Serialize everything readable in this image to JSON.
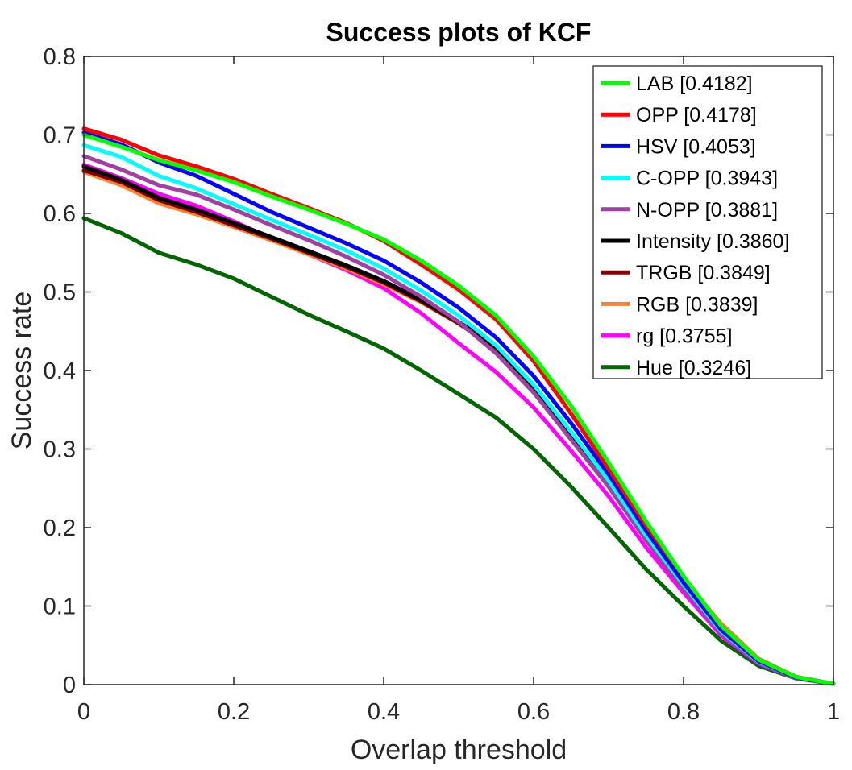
{
  "chart_data": {
    "type": "line",
    "title": "Success plots of KCF",
    "xlabel": "Overlap threshold",
    "ylabel": "Success rate",
    "xlim": [
      0,
      1
    ],
    "ylim": [
      0,
      0.8
    ],
    "grid": false,
    "legend_position": "top-right",
    "x_ticks": [
      "0",
      "0.2",
      "0.4",
      "0.6",
      "0.8",
      "1"
    ],
    "y_ticks": [
      "0",
      "0.1",
      "0.2",
      "0.3",
      "0.4",
      "0.5",
      "0.6",
      "0.7",
      "0.8"
    ],
    "x": [
      0,
      0.05,
      0.1,
      0.15,
      0.2,
      0.25,
      0.3,
      0.35,
      0.4,
      0.45,
      0.5,
      0.55,
      0.6,
      0.65,
      0.7,
      0.75,
      0.8,
      0.85,
      0.9,
      0.95,
      1.0
    ],
    "series": [
      {
        "name": "LAB [0.4182]",
        "color": "#00ff00",
        "values": [
          0.7,
          0.685,
          0.668,
          0.655,
          0.64,
          0.622,
          0.605,
          0.587,
          0.567,
          0.54,
          0.508,
          0.47,
          0.418,
          0.355,
          0.283,
          0.208,
          0.138,
          0.075,
          0.032,
          0.01,
          0.001
        ]
      },
      {
        "name": "OPP [0.4178]",
        "color": "#ff0000",
        "values": [
          0.708,
          0.694,
          0.674,
          0.66,
          0.644,
          0.625,
          0.607,
          0.588,
          0.565,
          0.535,
          0.503,
          0.465,
          0.412,
          0.345,
          0.275,
          0.203,
          0.138,
          0.075,
          0.032,
          0.01,
          0.001
        ]
      },
      {
        "name": "HSV [0.4053]",
        "color": "#0000ff",
        "values": [
          0.703,
          0.688,
          0.665,
          0.648,
          0.625,
          0.602,
          0.582,
          0.562,
          0.54,
          0.512,
          0.48,
          0.442,
          0.393,
          0.333,
          0.268,
          0.196,
          0.13,
          0.07,
          0.03,
          0.009,
          0.001
        ]
      },
      {
        "name": "C-OPP [0.3943]",
        "color": "#00ffff",
        "values": [
          0.687,
          0.672,
          0.648,
          0.632,
          0.612,
          0.592,
          0.573,
          0.553,
          0.53,
          0.502,
          0.47,
          0.432,
          0.382,
          0.322,
          0.26,
          0.19,
          0.127,
          0.068,
          0.029,
          0.009,
          0.001
        ]
      },
      {
        "name": "N-OPP [0.3881]",
        "color": "#a040a0",
        "values": [
          0.673,
          0.656,
          0.636,
          0.624,
          0.605,
          0.585,
          0.566,
          0.545,
          0.522,
          0.494,
          0.462,
          0.422,
          0.372,
          0.312,
          0.252,
          0.184,
          0.122,
          0.066,
          0.028,
          0.008,
          0.001
        ]
      },
      {
        "name": "Intensity [0.3860]",
        "color": "#000000",
        "values": [
          0.66,
          0.643,
          0.62,
          0.605,
          0.588,
          0.57,
          0.552,
          0.534,
          0.514,
          0.49,
          0.462,
          0.43,
          0.38,
          0.32,
          0.258,
          0.19,
          0.128,
          0.072,
          0.03,
          0.009,
          0.001
        ]
      },
      {
        "name": "TRGB [0.3849]",
        "color": "#800000",
        "values": [
          0.655,
          0.64,
          0.617,
          0.602,
          0.585,
          0.568,
          0.55,
          0.532,
          0.512,
          0.488,
          0.46,
          0.428,
          0.378,
          0.318,
          0.257,
          0.189,
          0.127,
          0.072,
          0.03,
          0.009,
          0.001
        ]
      },
      {
        "name": "RGB [0.3839]",
        "color": "#ff8030",
        "values": [
          0.653,
          0.636,
          0.613,
          0.599,
          0.583,
          0.566,
          0.548,
          0.53,
          0.51,
          0.487,
          0.46,
          0.428,
          0.378,
          0.32,
          0.262,
          0.195,
          0.134,
          0.078,
          0.033,
          0.01,
          0.001
        ]
      },
      {
        "name": "rg [0.3755]",
        "color": "#ff00ff",
        "values": [
          0.662,
          0.645,
          0.625,
          0.61,
          0.59,
          0.568,
          0.548,
          0.528,
          0.505,
          0.473,
          0.435,
          0.398,
          0.353,
          0.298,
          0.24,
          0.175,
          0.117,
          0.063,
          0.027,
          0.008,
          0.001
        ]
      },
      {
        "name": "Hue [0.3246]",
        "color": "#006400",
        "values": [
          0.594,
          0.575,
          0.55,
          0.535,
          0.517,
          0.494,
          0.471,
          0.45,
          0.428,
          0.4,
          0.37,
          0.34,
          0.3,
          0.252,
          0.2,
          0.147,
          0.1,
          0.056,
          0.024,
          0.008,
          0.001
        ]
      }
    ]
  }
}
